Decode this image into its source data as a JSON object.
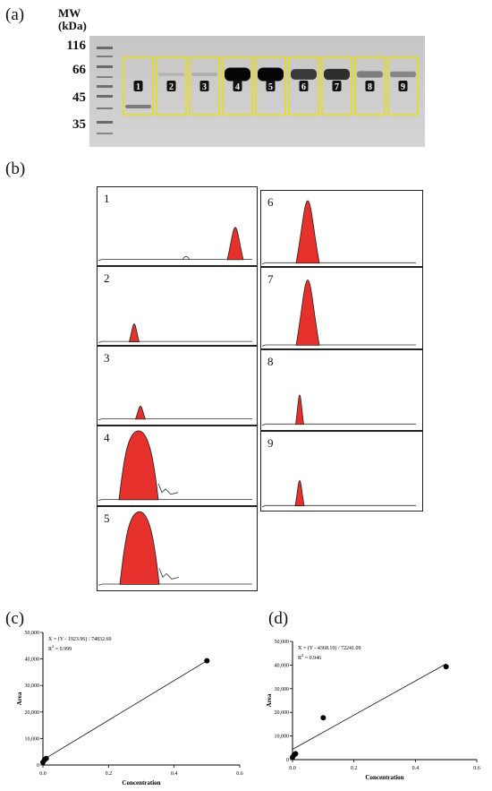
{
  "panel_a": {
    "label": "(a)",
    "mw_title": "MW",
    "mw_unit": "(kDa)",
    "markers": [
      "116",
      "66",
      "45",
      "35"
    ],
    "lane_numbers": [
      "1",
      "2",
      "3",
      "4",
      "5",
      "6",
      "7",
      "8",
      "9"
    ],
    "band_66_intensity": [
      0.0,
      0.05,
      0.08,
      1.0,
      1.0,
      0.72,
      0.78,
      0.35,
      0.3
    ],
    "band_40_intensity": [
      0.55,
      0,
      0,
      0,
      0,
      0,
      0,
      0,
      0
    ]
  },
  "panel_b": {
    "label": "(b)",
    "traces": [
      {
        "number": "1",
        "peak_height": 0.45
      },
      {
        "number": "2",
        "peak_height": 0.25
      },
      {
        "number": "3",
        "peak_height": 0.18
      },
      {
        "number": "4",
        "peak_height": 0.95
      },
      {
        "number": "5",
        "peak_height": 0.95
      },
      {
        "number": "6",
        "peak_height": 0.9
      },
      {
        "number": "7",
        "peak_height": 0.88
      },
      {
        "number": "8",
        "peak_height": 0.4
      },
      {
        "number": "9",
        "peak_height": 0.35
      }
    ]
  },
  "chart_data": [
    {
      "label": "(c)",
      "type": "scatter",
      "equation": "X = (Y - 1923.96) / 74832.69",
      "r2_prefix": "R",
      "r2_sup": "2",
      "r2_value": " = 0.999",
      "xlabel": "Concentration",
      "ylabel": "Area",
      "xlim": [
        0,
        0.6
      ],
      "ylim": [
        0,
        50000
      ],
      "x_ticks": [
        "0.0",
        "0.2",
        "0.4",
        "0.6"
      ],
      "y_ticks": [
        "0",
        "10,000",
        "20,000",
        "30,000",
        "40,000",
        "50,000"
      ],
      "points": [
        {
          "x": 0.0,
          "y": 1000
        },
        {
          "x": 0.005,
          "y": 2000
        },
        {
          "x": 0.01,
          "y": 2500
        },
        {
          "x": 0.5,
          "y": 39300
        }
      ],
      "fit": {
        "slope": 74832.69,
        "intercept": 1923.96
      }
    },
    {
      "label": "(d)",
      "type": "scatter",
      "equation": "X = (Y - 4368.19) / 72241.09",
      "r2_prefix": "R",
      "r2_sup": "2",
      "r2_value": " = 0.946",
      "xlabel": "Concentration",
      "ylabel": "Area",
      "xlim": [
        0,
        0.6
      ],
      "ylim": [
        0,
        50000
      ],
      "x_ticks": [
        "0.0",
        "0.2",
        "0.4",
        "0.6"
      ],
      "y_ticks": [
        "0",
        "10,000",
        "20,000",
        "30,000",
        "40,000",
        "50,000"
      ],
      "points": [
        {
          "x": 0.0,
          "y": 1000
        },
        {
          "x": 0.005,
          "y": 2000
        },
        {
          "x": 0.01,
          "y": 2500
        },
        {
          "x": 0.1,
          "y": 17700
        },
        {
          "x": 0.5,
          "y": 39300
        }
      ],
      "fit": {
        "slope": 72241.09,
        "intercept": 4368.19
      }
    }
  ]
}
